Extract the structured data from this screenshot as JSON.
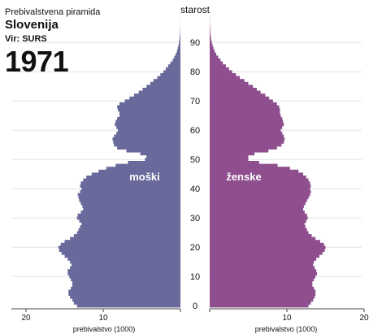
{
  "header": {
    "subtitle": "Prebivalstvena piramida",
    "country": "Slovenija",
    "source": "Vir: SURS",
    "year": "1971"
  },
  "chart_data": {
    "type": "bar",
    "orientation": "horizontal-pyramid",
    "title": "Slovenija 1971",
    "center_axis_label": "starost",
    "age_ticks": [
      0,
      10,
      20,
      30,
      40,
      50,
      60,
      70,
      80,
      90
    ],
    "xlabel_left": "prebivalstvo (1000)",
    "xlabel_right": "prebivalstvo (1000)",
    "x_ticks": [
      20,
      10,
      0
    ],
    "xlim": [
      0,
      20
    ],
    "ylim": [
      0,
      100
    ],
    "grid": true,
    "colors": {
      "male": "#696a9b",
      "female": "#8f4f8f"
    },
    "series": [
      {
        "name": "moški",
        "ages": [
          0,
          1,
          2,
          3,
          4,
          5,
          6,
          7,
          8,
          9,
          10,
          11,
          12,
          13,
          14,
          15,
          16,
          17,
          18,
          19,
          20,
          21,
          22,
          23,
          24,
          25,
          26,
          27,
          28,
          29,
          30,
          31,
          32,
          33,
          34,
          35,
          36,
          37,
          38,
          39,
          40,
          41,
          42,
          43,
          44,
          45,
          46,
          47,
          48,
          49,
          50,
          51,
          52,
          53,
          54,
          55,
          56,
          57,
          58,
          59,
          60,
          61,
          62,
          63,
          64,
          65,
          66,
          67,
          68,
          69,
          70,
          71,
          72,
          73,
          74,
          75,
          76,
          77,
          78,
          79,
          80,
          81,
          82,
          83,
          84,
          85,
          86,
          87,
          88,
          89,
          90,
          91,
          92,
          93,
          94,
          95,
          96,
          97,
          98,
          99,
          100
        ],
        "values": [
          13.4,
          13.8,
          14.0,
          14.3,
          14.5,
          14.5,
          14.2,
          14.0,
          14.0,
          14.2,
          14.4,
          14.6,
          14.6,
          14.3,
          14.1,
          14.3,
          14.6,
          15.0,
          15.4,
          15.7,
          15.8,
          15.5,
          15.0,
          14.3,
          13.8,
          13.4,
          13.2,
          13.0,
          12.8,
          13.1,
          13.4,
          13.3,
          12.9,
          12.6,
          12.7,
          12.9,
          13.1,
          13.2,
          13.3,
          13.0,
          12.8,
          13.0,
          12.9,
          12.6,
          12.2,
          11.5,
          10.6,
          9.6,
          8.4,
          6.8,
          4.6,
          4.4,
          5.2,
          7.0,
          8.2,
          8.6,
          8.7,
          8.8,
          8.6,
          8.3,
          8.1,
          8.3,
          8.5,
          8.4,
          8.2,
          7.9,
          7.9,
          8.1,
          8.2,
          7.9,
          7.2,
          6.6,
          6.0,
          5.4,
          4.9,
          4.4,
          3.9,
          3.5,
          3.0,
          2.6,
          2.2,
          1.9,
          1.6,
          1.3,
          1.0,
          0.8,
          0.6,
          0.45,
          0.35,
          0.25,
          0.18,
          0.12,
          0.08,
          0.05,
          0.03,
          0.02,
          0.01,
          0.01,
          0,
          0,
          0
        ]
      },
      {
        "name": "ženske",
        "ages": [
          0,
          1,
          2,
          3,
          4,
          5,
          6,
          7,
          8,
          9,
          10,
          11,
          12,
          13,
          14,
          15,
          16,
          17,
          18,
          19,
          20,
          21,
          22,
          23,
          24,
          25,
          26,
          27,
          28,
          29,
          30,
          31,
          32,
          33,
          34,
          35,
          36,
          37,
          38,
          39,
          40,
          41,
          42,
          43,
          44,
          45,
          46,
          47,
          48,
          49,
          50,
          51,
          52,
          53,
          54,
          55,
          56,
          57,
          58,
          59,
          60,
          61,
          62,
          63,
          64,
          65,
          66,
          67,
          68,
          69,
          70,
          71,
          72,
          73,
          74,
          75,
          76,
          77,
          78,
          79,
          80,
          81,
          82,
          83,
          84,
          85,
          86,
          87,
          88,
          89,
          90,
          91,
          92,
          93,
          94,
          95,
          96,
          97,
          98,
          99,
          100
        ],
        "values": [
          12.8,
          13.1,
          13.4,
          13.6,
          13.7,
          13.7,
          13.5,
          13.3,
          13.3,
          13.5,
          13.7,
          13.9,
          13.8,
          13.6,
          13.4,
          13.5,
          13.8,
          14.2,
          14.6,
          14.9,
          15.0,
          14.8,
          14.3,
          13.7,
          13.2,
          12.8,
          12.6,
          12.4,
          12.3,
          12.5,
          12.7,
          12.6,
          12.3,
          12.1,
          12.2,
          12.4,
          12.6,
          12.8,
          13.0,
          13.1,
          13.0,
          13.1,
          13.0,
          12.8,
          12.5,
          12.1,
          11.5,
          10.4,
          8.8,
          6.4,
          5.0,
          5.0,
          5.8,
          7.6,
          8.7,
          9.3,
          9.6,
          9.7,
          9.6,
          9.4,
          9.2,
          9.4,
          9.6,
          9.5,
          9.4,
          9.2,
          9.1,
          9.1,
          9.0,
          8.7,
          8.2,
          7.7,
          7.2,
          6.6,
          6.1,
          5.6,
          5.0,
          4.5,
          3.9,
          3.4,
          2.9,
          2.5,
          2.1,
          1.7,
          1.4,
          1.1,
          0.85,
          0.65,
          0.5,
          0.38,
          0.28,
          0.2,
          0.14,
          0.1,
          0.07,
          0.05,
          0.03,
          0.02,
          0.01,
          0.01,
          0
        ]
      }
    ]
  }
}
